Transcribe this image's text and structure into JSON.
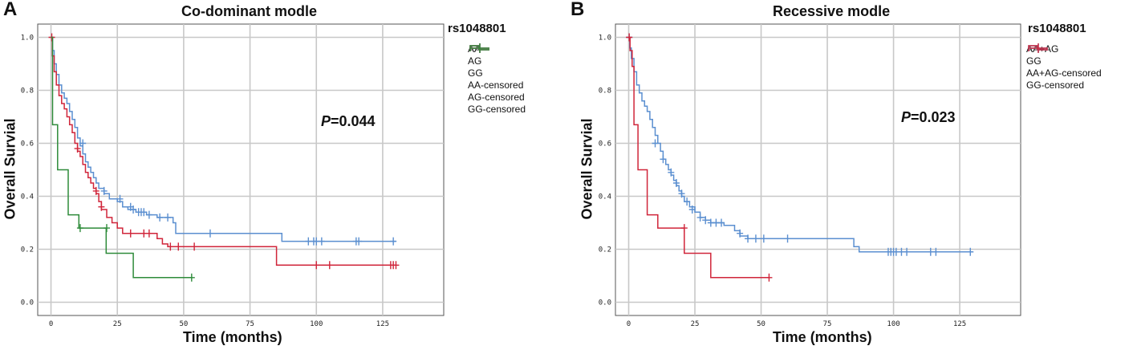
{
  "chart_data": [
    {
      "panel": "A",
      "type": "line",
      "subtype": "kaplan-meier",
      "title": "Co-dominant modle",
      "xlabel": "Time (months)",
      "ylabel": "Overall Survial",
      "xlim": [
        -5,
        148
      ],
      "ylim": [
        -0.05,
        1.05
      ],
      "xticks": [
        "0",
        "25",
        "50",
        "75",
        "100",
        "125"
      ],
      "yticks": [
        "0.0",
        "0.2",
        "0.4",
        "0.6",
        "0.8",
        "1.0"
      ],
      "grid": true,
      "p_label": "P",
      "p_text": "=0.044",
      "legend_title": "rs1048801",
      "legend_position": "right",
      "legend": [
        {
          "label": "AA",
          "kind": "step",
          "color": "#5b8fd0"
        },
        {
          "label": "AG",
          "kind": "step",
          "color": "#d0253a"
        },
        {
          "label": "GG",
          "kind": "step",
          "color": "#2e8b3a"
        },
        {
          "label": "AA-censored",
          "kind": "censor",
          "color": "#5b8fd0"
        },
        {
          "label": "AG-censored",
          "kind": "censor",
          "color": "#d0253a"
        },
        {
          "label": "GG-censored",
          "kind": "censor",
          "color": "#2e8b3a"
        }
      ],
      "series": [
        {
          "name": "AA",
          "color": "#5b8fd0",
          "steps": [
            [
              0,
              1.0
            ],
            [
              0.6,
              0.95
            ],
            [
              1.2,
              0.9
            ],
            [
              2,
              0.86
            ],
            [
              3,
              0.82
            ],
            [
              4,
              0.79
            ],
            [
              5,
              0.77
            ],
            [
              6,
              0.75
            ],
            [
              7,
              0.72
            ],
            [
              8,
              0.69
            ],
            [
              9,
              0.66
            ],
            [
              10,
              0.62
            ],
            [
              11,
              0.59
            ],
            [
              12,
              0.56
            ],
            [
              13,
              0.53
            ],
            [
              14,
              0.51
            ],
            [
              15,
              0.49
            ],
            [
              16,
              0.47
            ],
            [
              17,
              0.45
            ],
            [
              18,
              0.43
            ],
            [
              20,
              0.41
            ],
            [
              22,
              0.39
            ],
            [
              25,
              0.38
            ],
            [
              27,
              0.36
            ],
            [
              29,
              0.35
            ],
            [
              32,
              0.34
            ],
            [
              36,
              0.33
            ],
            [
              40,
              0.32
            ],
            [
              46,
              0.3
            ],
            [
              47,
              0.26
            ],
            [
              86,
              0.26
            ],
            [
              87,
              0.23
            ],
            [
              130,
              0.23
            ]
          ],
          "censored": [
            [
              12,
              0.6
            ],
            [
              20,
              0.42
            ],
            [
              26,
              0.39
            ],
            [
              30,
              0.36
            ],
            [
              31,
              0.35
            ],
            [
              33,
              0.34
            ],
            [
              34,
              0.34
            ],
            [
              35,
              0.34
            ],
            [
              37,
              0.33
            ],
            [
              41,
              0.32
            ],
            [
              44,
              0.32
            ],
            [
              60,
              0.26
            ],
            [
              97,
              0.23
            ],
            [
              99,
              0.23
            ],
            [
              100,
              0.23
            ],
            [
              102,
              0.23
            ],
            [
              115,
              0.23
            ],
            [
              116,
              0.23
            ],
            [
              129,
              0.23
            ]
          ]
        },
        {
          "name": "AG",
          "color": "#d0253a",
          "steps": [
            [
              0,
              1.0
            ],
            [
              0.5,
              0.93
            ],
            [
              1.2,
              0.87
            ],
            [
              2,
              0.82
            ],
            [
              3,
              0.78
            ],
            [
              4,
              0.75
            ],
            [
              5,
              0.73
            ],
            [
              6,
              0.7
            ],
            [
              7,
              0.67
            ],
            [
              8,
              0.64
            ],
            [
              9,
              0.6
            ],
            [
              10,
              0.57
            ],
            [
              11,
              0.55
            ],
            [
              12,
              0.52
            ],
            [
              13,
              0.49
            ],
            [
              14,
              0.47
            ],
            [
              15,
              0.45
            ],
            [
              16,
              0.43
            ],
            [
              17,
              0.41
            ],
            [
              18,
              0.38
            ],
            [
              19,
              0.35
            ],
            [
              21,
              0.32
            ],
            [
              23,
              0.3
            ],
            [
              25,
              0.28
            ],
            [
              27,
              0.26
            ],
            [
              40,
              0.24
            ],
            [
              42,
              0.22
            ],
            [
              44,
              0.21
            ],
            [
              84,
              0.21
            ],
            [
              85,
              0.14
            ],
            [
              130,
              0.14
            ]
          ],
          "censored": [
            [
              0.3,
              1.0
            ],
            [
              10,
              0.58
            ],
            [
              17,
              0.42
            ],
            [
              19,
              0.36
            ],
            [
              30,
              0.26
            ],
            [
              35,
              0.26
            ],
            [
              37,
              0.26
            ],
            [
              45,
              0.21
            ],
            [
              48,
              0.21
            ],
            [
              54,
              0.21
            ],
            [
              100,
              0.14
            ],
            [
              105,
              0.14
            ],
            [
              128,
              0.14
            ],
            [
              129,
              0.14
            ],
            [
              130,
              0.14
            ]
          ]
        },
        {
          "name": "GG",
          "color": "#2e8b3a",
          "steps": [
            [
              0,
              1.0
            ],
            [
              0.6,
              0.67
            ],
            [
              2.5,
              0.5
            ],
            [
              6.5,
              0.33
            ],
            [
              10.5,
              0.28
            ],
            [
              20.8,
              0.185
            ],
            [
              31,
              0.093
            ],
            [
              53,
              0.093
            ]
          ],
          "censored": [
            [
              11,
              0.28
            ],
            [
              21,
              0.28
            ],
            [
              53,
              0.093
            ]
          ]
        }
      ]
    },
    {
      "panel": "B",
      "type": "line",
      "subtype": "kaplan-meier",
      "title": "Recessive modle",
      "xlabel": "Time (months)",
      "ylabel": "Overall Survial",
      "xlim": [
        -5,
        148
      ],
      "ylim": [
        -0.05,
        1.05
      ],
      "xticks": [
        "0",
        "25",
        "50",
        "75",
        "100",
        "125"
      ],
      "yticks": [
        "0.0",
        "0.2",
        "0.4",
        "0.6",
        "0.8",
        "1.0"
      ],
      "grid": true,
      "p_label": "P",
      "p_text": "=0.023",
      "legend_title": "rs1048801",
      "legend_position": "right",
      "legend": [
        {
          "label": "AA+AG",
          "kind": "step",
          "color": "#5b8fd0"
        },
        {
          "label": "GG",
          "kind": "step",
          "color": "#d0253a"
        },
        {
          "label": "AA+AG-censored",
          "kind": "censor",
          "color": "#5b8fd0"
        },
        {
          "label": "GG-censored",
          "kind": "censor",
          "color": "#d0253a"
        }
      ],
      "series": [
        {
          "name": "AA+AG",
          "color": "#5b8fd0",
          "steps": [
            [
              0,
              1.0
            ],
            [
              0.4,
              0.96
            ],
            [
              1,
              0.92
            ],
            [
              2,
              0.87
            ],
            [
              3,
              0.82
            ],
            [
              4,
              0.79
            ],
            [
              5,
              0.76
            ],
            [
              6,
              0.74
            ],
            [
              7,
              0.72
            ],
            [
              8,
              0.69
            ],
            [
              9,
              0.66
            ],
            [
              10,
              0.63
            ],
            [
              11,
              0.6
            ],
            [
              12,
              0.57
            ],
            [
              13,
              0.54
            ],
            [
              14,
              0.52
            ],
            [
              15,
              0.5
            ],
            [
              16,
              0.48
            ],
            [
              17,
              0.46
            ],
            [
              18,
              0.44
            ],
            [
              19,
              0.42
            ],
            [
              20,
              0.4
            ],
            [
              21,
              0.38
            ],
            [
              23,
              0.36
            ],
            [
              25,
              0.34
            ],
            [
              27,
              0.32
            ],
            [
              29,
              0.31
            ],
            [
              31,
              0.3
            ],
            [
              36,
              0.29
            ],
            [
              40,
              0.27
            ],
            [
              42,
              0.25
            ],
            [
              45,
              0.24
            ],
            [
              84,
              0.24
            ],
            [
              85,
              0.21
            ],
            [
              87,
              0.19
            ],
            [
              130,
              0.19
            ]
          ],
          "censored": [
            [
              0.2,
              1.0
            ],
            [
              10,
              0.6
            ],
            [
              13,
              0.54
            ],
            [
              16,
              0.49
            ],
            [
              18,
              0.45
            ],
            [
              20,
              0.41
            ],
            [
              22,
              0.38
            ],
            [
              24,
              0.35
            ],
            [
              27,
              0.32
            ],
            [
              29,
              0.31
            ],
            [
              31,
              0.3
            ],
            [
              33,
              0.3
            ],
            [
              35,
              0.3
            ],
            [
              42,
              0.26
            ],
            [
              45,
              0.24
            ],
            [
              48,
              0.24
            ],
            [
              51,
              0.24
            ],
            [
              60,
              0.24
            ],
            [
              98,
              0.19
            ],
            [
              99,
              0.19
            ],
            [
              100,
              0.19
            ],
            [
              101,
              0.19
            ],
            [
              103,
              0.19
            ],
            [
              105,
              0.19
            ],
            [
              114,
              0.19
            ],
            [
              116,
              0.19
            ],
            [
              129,
              0.19
            ]
          ]
        },
        {
          "name": "GG",
          "color": "#d0253a",
          "steps": [
            [
              0,
              1.0
            ],
            [
              0.5,
              0.95
            ],
            [
              1.3,
              0.89
            ],
            [
              2,
              0.67
            ],
            [
              3.5,
              0.5
            ],
            [
              7,
              0.33
            ],
            [
              11,
              0.28
            ],
            [
              21,
              0.185
            ],
            [
              31,
              0.093
            ],
            [
              53,
              0.093
            ]
          ],
          "censored": [
            [
              0.2,
              1.0
            ],
            [
              21,
              0.28
            ],
            [
              53,
              0.093
            ]
          ]
        }
      ]
    }
  ]
}
